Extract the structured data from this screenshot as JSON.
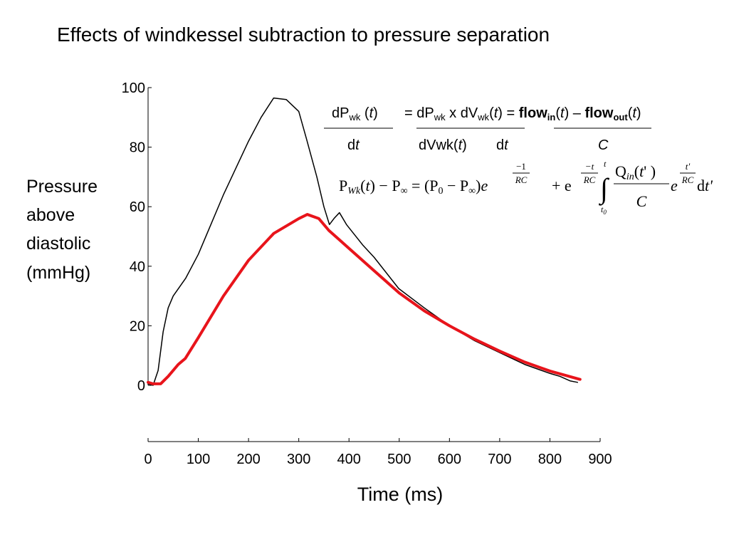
{
  "chart_data": {
    "type": "line",
    "title": "Effects of windkessel subtraction to pressure separation",
    "ylabel": [
      "Pressure",
      "above",
      "diastolic",
      "(mmHg)"
    ],
    "xlabel": "Time (ms)",
    "xlim": [
      0,
      900
    ],
    "xticks": [
      0,
      100,
      200,
      300,
      400,
      500,
      600,
      700,
      800,
      900
    ],
    "ylim": [
      0,
      100
    ],
    "yticks": [
      0,
      20,
      40,
      60,
      80,
      100
    ],
    "series": [
      {
        "color": "#000000",
        "width": 1.5,
        "x": [
          0,
          10,
          20,
          30,
          40,
          50,
          75,
          100,
          125,
          150,
          175,
          200,
          225,
          250,
          275,
          300,
          315,
          336,
          350,
          361,
          370,
          381,
          395,
          428,
          450,
          499,
          550,
          600,
          650,
          700,
          750,
          800,
          820,
          840,
          855
        ],
        "values": [
          0.5,
          0,
          5,
          18,
          26,
          30,
          36,
          44,
          54,
          64,
          73,
          82,
          90,
          96.5,
          96,
          92,
          83,
          70,
          60,
          54,
          56,
          58,
          54,
          47,
          43,
          32.5,
          26,
          20,
          15,
          11,
          7,
          4,
          3,
          1.5,
          1
        ]
      },
      {
        "color": "#e8141b",
        "width": 4,
        "x": [
          0,
          10,
          25,
          40,
          60,
          74,
          100,
          150,
          200,
          250,
          300,
          317,
          340,
          360,
          380,
          400,
          450,
          500,
          550,
          600,
          650,
          700,
          750,
          800,
          860
        ],
        "values": [
          1,
          0.5,
          0.5,
          3,
          7,
          9,
          16,
          30,
          42,
          51,
          56,
          57.4,
          56,
          52,
          49,
          46,
          38.5,
          31,
          25,
          20,
          15.5,
          11.5,
          7.8,
          4.8,
          2
        ]
      }
    ],
    "equation_1": {
      "numerator": [
        "dP",
        "wk",
        " (",
        "t",
        ")",
        "= dP",
        "wk",
        " x dV",
        "wk",
        "(",
        "t",
        ")",
        " = ",
        "flow",
        "in",
        "(",
        "t",
        ") – ",
        "flow",
        "out",
        "(",
        "t",
        ")"
      ],
      "denominator": [
        "d",
        "t",
        "dVwk(",
        "t",
        ")",
        "d",
        "t",
        "C"
      ]
    },
    "equation_2": [
      "P",
      "Wk",
      "(",
      "t",
      ") − P",
      "∞",
      " = (P",
      "0",
      " − P",
      "∞",
      ")",
      "e",
      "−1",
      "RC",
      "+ e",
      "−t",
      "RC",
      "∫",
      "t",
      "t",
      "0",
      "Q",
      "in",
      "(",
      "t",
      "' )",
      "C",
      "e",
      "t'",
      "RC",
      "d",
      "t'"
    ]
  }
}
